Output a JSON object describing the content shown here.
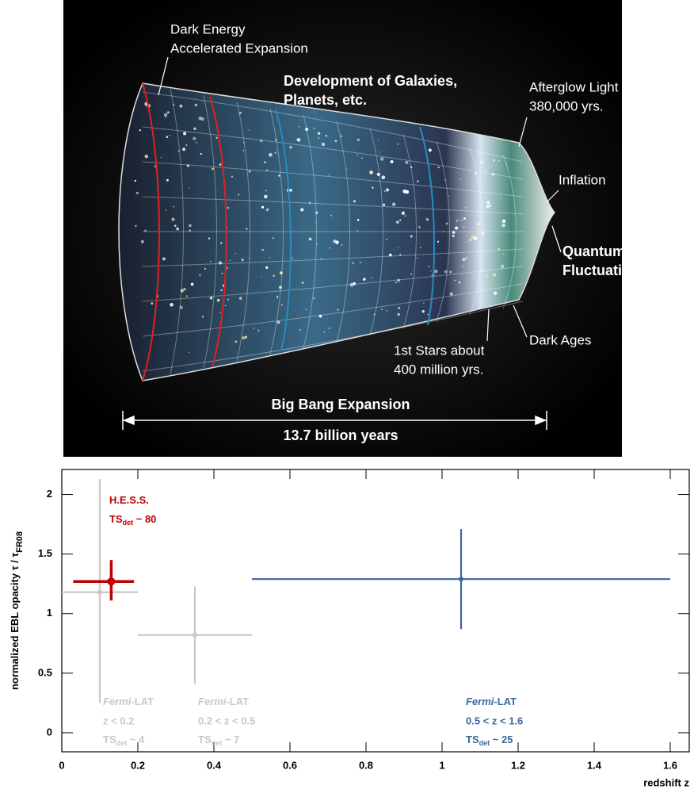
{
  "illustration": {
    "labels": [
      {
        "lines": [
          "Dark Energy",
          "Accelerated Expansion"
        ],
        "bold": false
      },
      {
        "lines": [
          "Development of Galaxies,",
          "Planets, etc."
        ],
        "bold": true
      },
      {
        "lines": [
          "Afterglow Light Pattern",
          "380,000 yrs."
        ],
        "bold": false
      },
      {
        "lines": [
          "Inflation"
        ],
        "bold": false
      },
      {
        "lines": [
          "Quantum",
          "Fluctuations"
        ],
        "bold": true
      },
      {
        "lines": [
          "Dark Ages"
        ],
        "bold": false
      },
      {
        "lines": [
          "1st Stars about",
          "400 million yrs."
        ],
        "bold": false
      }
    ],
    "span_title": "Big Bang Expansion",
    "span_value": "13.7 billion years"
  },
  "chart_data": {
    "type": "errorbar",
    "xlabel": "redshift z",
    "ylabel": "normalized EBL opacity  τ / τ",
    "ylabel_sub": "FR08",
    "xlim": [
      0,
      1.65
    ],
    "ylim": [
      -0.16,
      2.21
    ],
    "xticks": [
      0,
      0.2,
      0.4,
      0.6,
      0.8,
      1,
      1.2,
      1.4,
      1.6
    ],
    "yticks": [
      0,
      0.5,
      1,
      1.5,
      2
    ],
    "series": [
      {
        "name_parts": [
          "Fermi",
          "-LAT"
        ],
        "condition": "z < 0.2",
        "ts": [
          "TS",
          "det",
          " ~ 4"
        ],
        "color": "#c8c8c8",
        "x": 0.1,
        "y": 1.18,
        "xlow": 0,
        "xhigh": 0.2,
        "ylow": 0.25,
        "yhigh": 2.13
      },
      {
        "name_parts": [
          "Fermi",
          "-LAT"
        ],
        "condition": "0.2 < z < 0.5",
        "ts": [
          "TS",
          "det",
          " ~ 7"
        ],
        "color": "#c8c8c8",
        "x": 0.35,
        "y": 0.82,
        "xlow": 0.2,
        "xhigh": 0.5,
        "ylow": 0.41,
        "yhigh": 1.23
      },
      {
        "name_parts": [
          "Fermi",
          "-LAT"
        ],
        "condition": "0.5 < z < 1.6",
        "ts": [
          "TS",
          "det",
          " ~ 25"
        ],
        "color": "#3a67a0",
        "x": 1.05,
        "y": 1.29,
        "xlow": 0.5,
        "xhigh": 1.6,
        "ylow": 0.87,
        "yhigh": 1.71
      },
      {
        "name_parts": [
          "H.E.S.S."
        ],
        "ts": [
          "TS",
          "det",
          " ~ 80"
        ],
        "color": "#c00000",
        "x": 0.13,
        "y": 1.27,
        "xlow": 0.03,
        "xhigh": 0.19,
        "ylow": 1.11,
        "yhigh": 1.45
      }
    ]
  }
}
